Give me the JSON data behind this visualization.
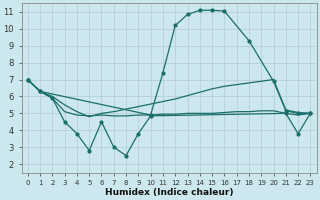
{
  "xlabel": "Humidex (Indice chaleur)",
  "background_color": "#cce8ee",
  "grid_color": "#c8dde0",
  "line_color": "#1a6e6a",
  "xlim": [
    -0.5,
    23.5
  ],
  "ylim": [
    1.5,
    11.5
  ],
  "xticks": [
    0,
    1,
    2,
    3,
    4,
    5,
    6,
    7,
    8,
    9,
    10,
    11,
    12,
    13,
    14,
    15,
    16,
    17,
    18,
    19,
    20,
    21,
    22,
    23
  ],
  "yticks": [
    2,
    3,
    4,
    5,
    6,
    7,
    8,
    9,
    10,
    11
  ],
  "curve_peak_x": [
    0,
    1,
    10,
    11,
    12,
    13,
    14,
    15,
    16,
    18,
    20,
    21,
    22,
    23
  ],
  "curve_peak_y": [
    7.0,
    6.3,
    4.9,
    7.4,
    10.2,
    10.85,
    11.1,
    11.1,
    11.05,
    9.3,
    6.9,
    5.15,
    5.0,
    5.0
  ],
  "curve_upper_x": [
    0,
    1,
    2,
    3,
    4,
    5,
    6,
    7,
    8,
    9,
    10,
    11,
    12,
    13,
    14,
    15,
    16,
    17,
    18,
    19,
    20,
    21,
    22,
    23
  ],
  "curve_upper_y": [
    7.0,
    6.3,
    6.0,
    5.5,
    5.1,
    4.8,
    5.0,
    5.1,
    5.25,
    5.4,
    5.55,
    5.7,
    5.85,
    6.05,
    6.25,
    6.45,
    6.6,
    6.7,
    6.8,
    6.9,
    7.0,
    5.2,
    5.05,
    5.0
  ],
  "curve_flat_x": [
    0,
    1,
    2,
    3,
    4,
    5,
    6,
    7,
    8,
    9,
    10,
    11,
    12,
    13,
    14,
    15,
    16,
    17,
    18,
    19,
    20,
    21,
    22,
    23
  ],
  "curve_flat_y": [
    7.0,
    6.3,
    5.9,
    5.1,
    4.9,
    4.85,
    4.9,
    4.85,
    4.85,
    4.9,
    4.9,
    4.95,
    4.95,
    5.0,
    5.0,
    5.0,
    5.05,
    5.1,
    5.1,
    5.15,
    5.15,
    5.0,
    4.9,
    5.0
  ],
  "curve_zigzag_x": [
    0,
    1,
    2,
    3,
    4,
    5,
    6,
    7,
    8,
    9,
    10,
    21,
    22,
    23
  ],
  "curve_zigzag_y": [
    7.0,
    6.3,
    5.9,
    4.5,
    3.8,
    2.8,
    4.5,
    3.0,
    2.5,
    3.8,
    4.85,
    5.0,
    3.8,
    5.0
  ]
}
